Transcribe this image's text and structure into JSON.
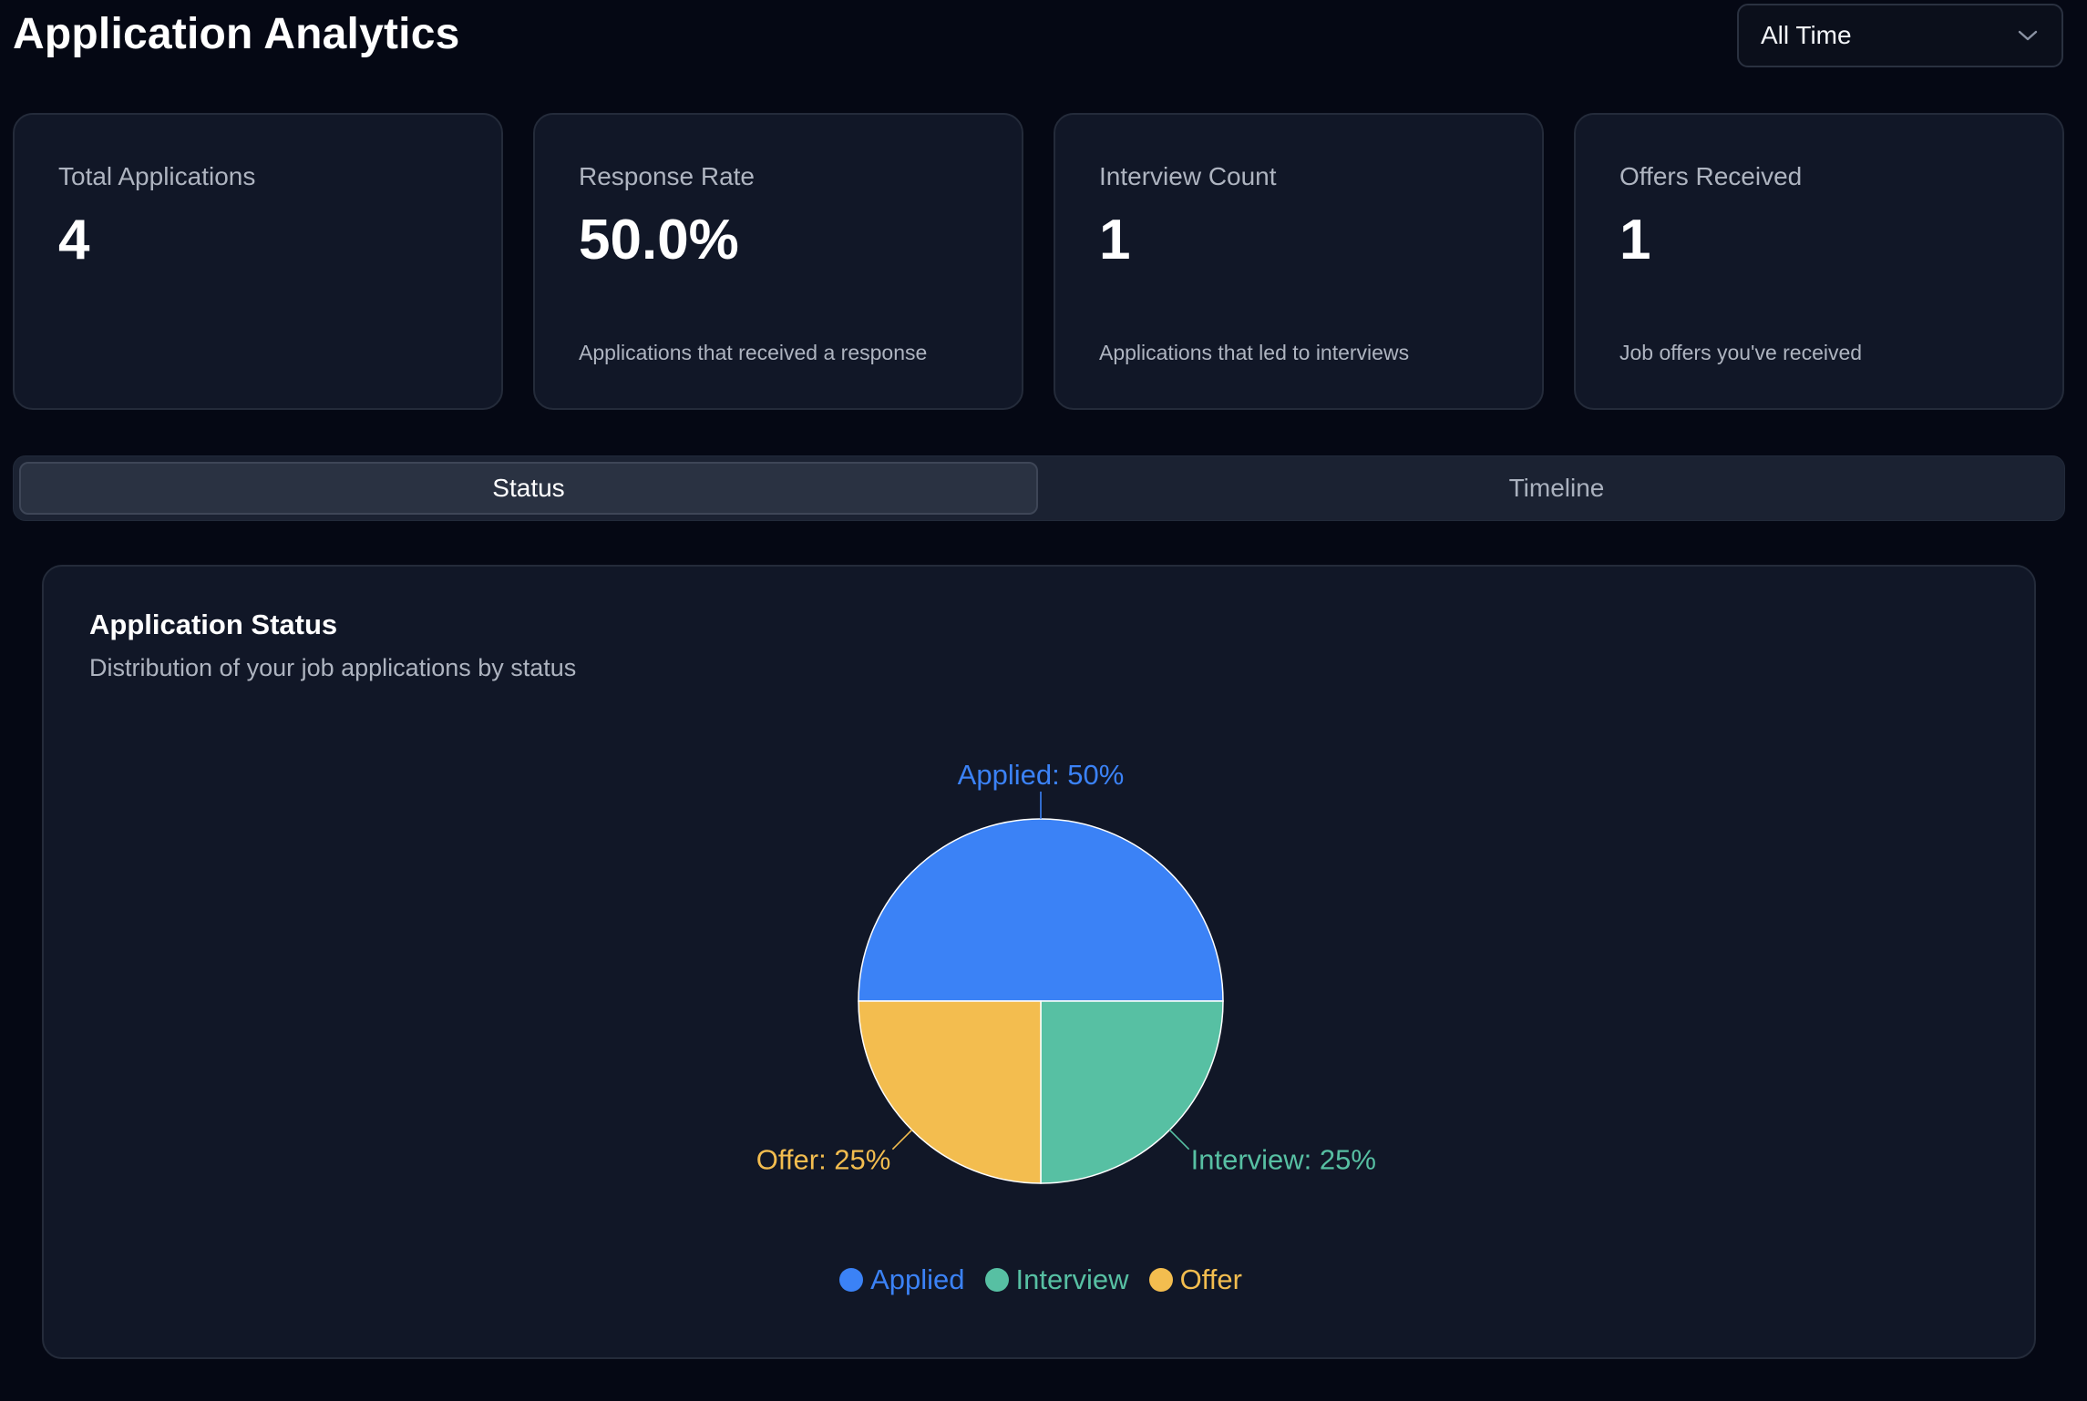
{
  "header": {
    "title": "Application Analytics",
    "time_filter": {
      "selected": "All Time"
    }
  },
  "stats": [
    {
      "label": "Total Applications",
      "value": "4",
      "description": ""
    },
    {
      "label": "Response Rate",
      "value": "50.0%",
      "description": "Applications that received a response"
    },
    {
      "label": "Interview Count",
      "value": "1",
      "description": "Applications that led to interviews"
    },
    {
      "label": "Offers Received",
      "value": "1",
      "description": "Job offers you've received"
    }
  ],
  "tabs": [
    {
      "label": "Status",
      "active": true
    },
    {
      "label": "Timeline",
      "active": false
    }
  ],
  "status_card": {
    "title": "Application Status",
    "subtitle": "Distribution of your job applications by status"
  },
  "chart_data": {
    "type": "pie",
    "categories": [
      "Applied",
      "Interview",
      "Offer"
    ],
    "values": [
      50,
      25,
      25
    ],
    "data_labels": [
      "Applied: 50%",
      "Interview: 25%",
      "Offer: 25%"
    ],
    "colors": [
      "#3b82f6",
      "#57c0a3",
      "#f3bd4f"
    ],
    "legend": "bottom-center"
  },
  "colors": {
    "background": "#050814",
    "card": "#111727",
    "border": "#242b3a",
    "muted_text": "#aeb4c0"
  },
  "icons": {
    "dropdown": "chevron-down-icon"
  }
}
